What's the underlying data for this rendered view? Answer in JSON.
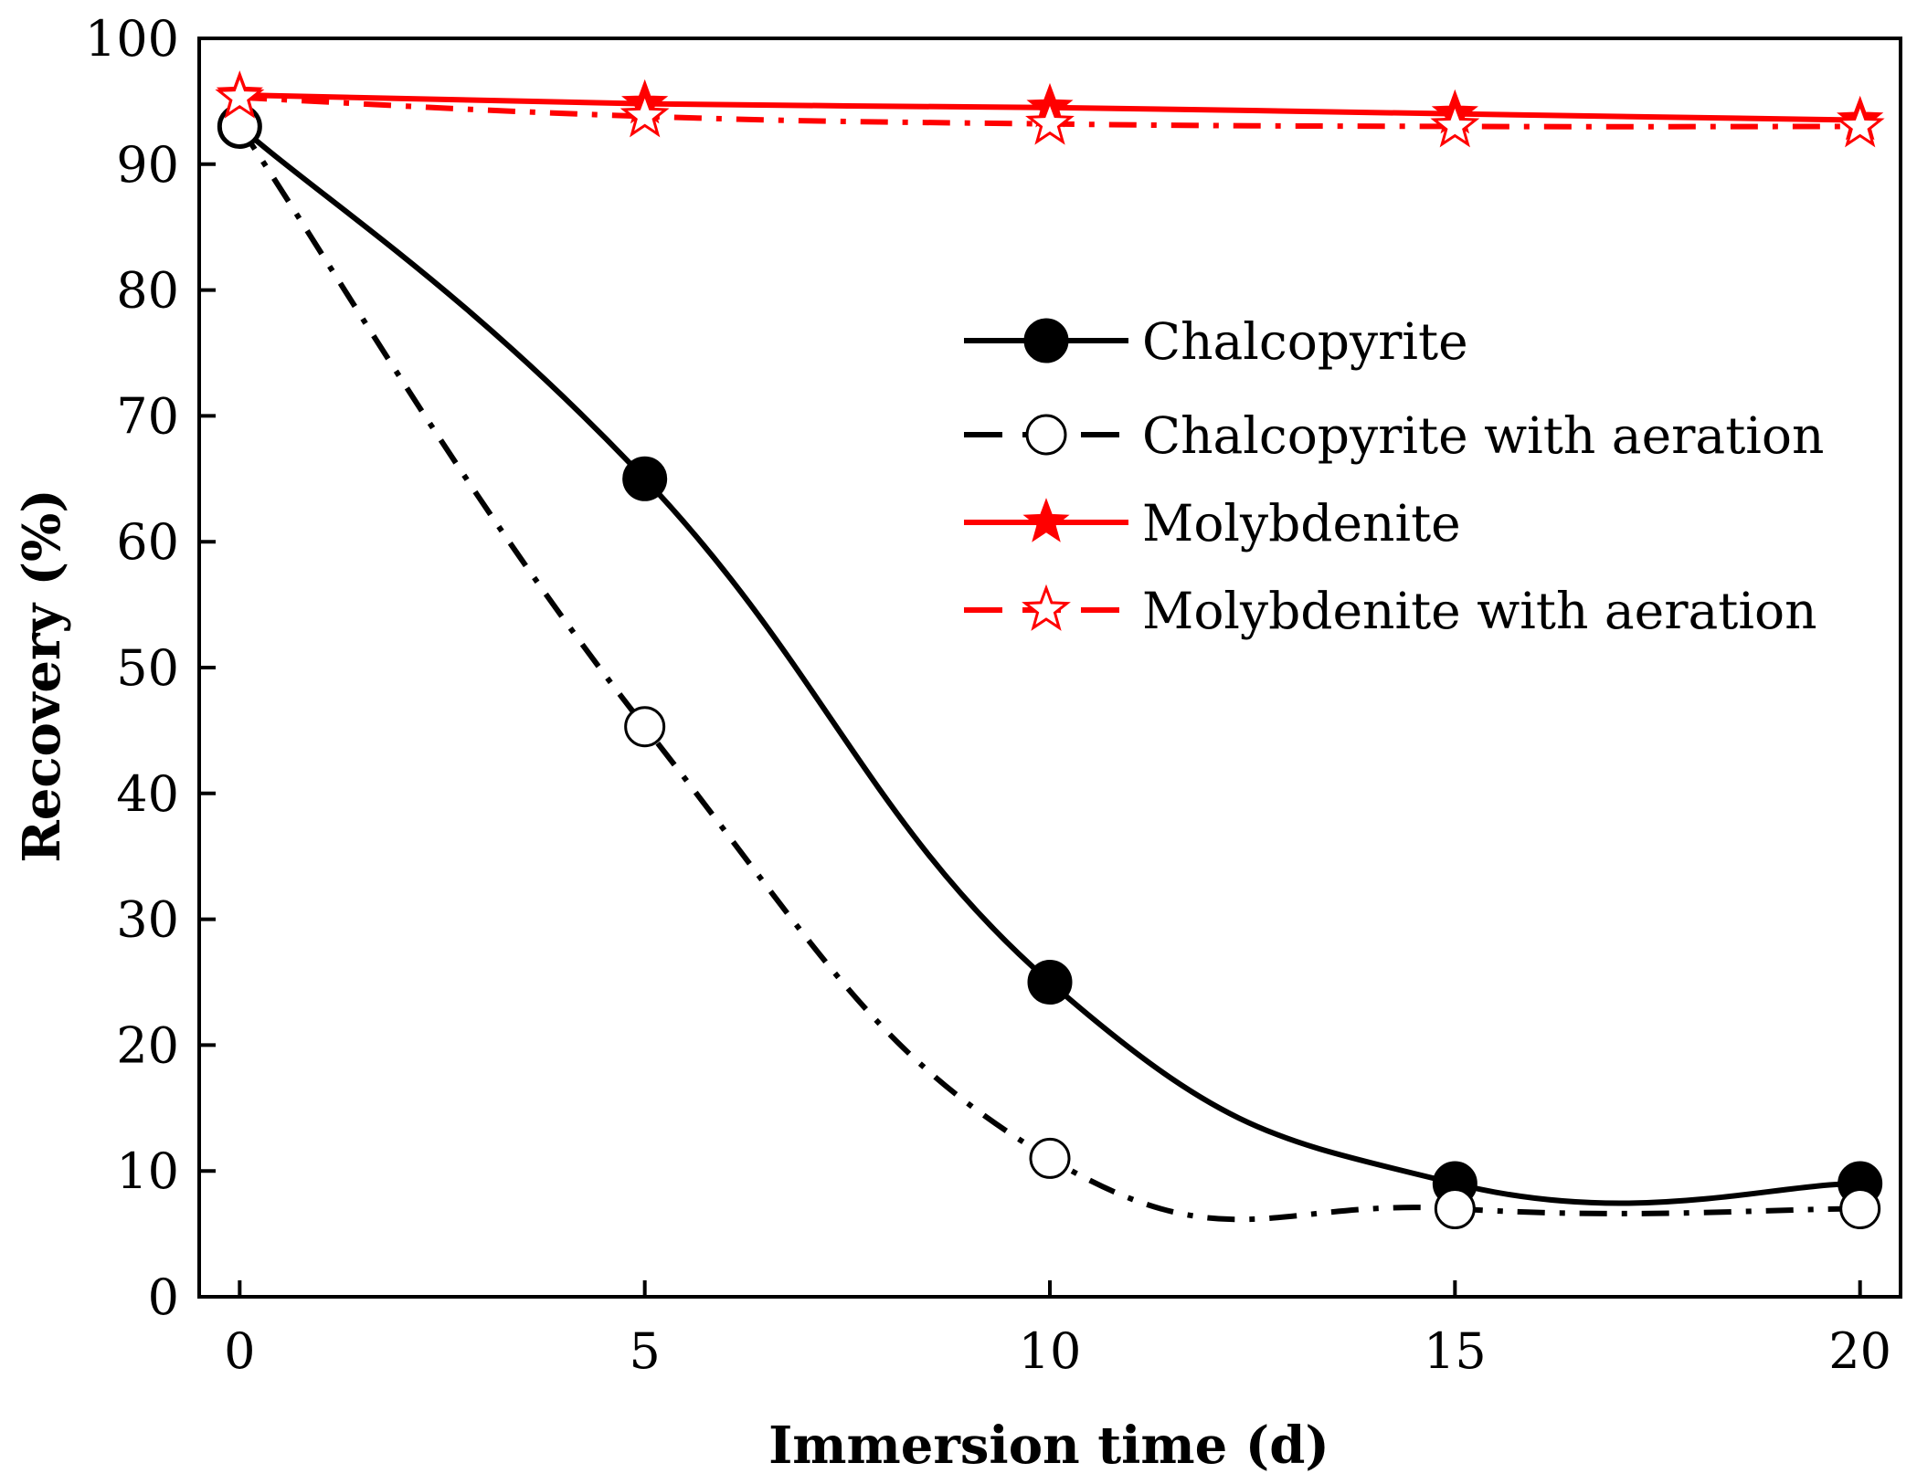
{
  "chart_data": {
    "type": "line",
    "title": "",
    "xlabel": "Immersion time (d)",
    "ylabel": "Recovery (%)",
    "xlim": [
      -0.5,
      20.5
    ],
    "ylim": [
      0,
      100
    ],
    "x_ticks": [
      0,
      5,
      10,
      15,
      20
    ],
    "y_ticks": [
      0,
      10,
      20,
      30,
      40,
      50,
      60,
      70,
      80,
      90,
      100
    ],
    "x_tick_labels": [
      "0",
      "5",
      "10",
      "15",
      "20"
    ],
    "y_tick_labels": [
      "0",
      "10",
      "20",
      "30",
      "40",
      "50",
      "60",
      "70",
      "80",
      "90",
      "100"
    ],
    "grid": false,
    "legend_position": "center-right",
    "x": [
      0,
      5,
      10,
      15,
      20
    ],
    "series": [
      {
        "name": "Chalcopyrite",
        "values": [
          93,
          65,
          25,
          9,
          9
        ],
        "color": "#000000",
        "line": "solid",
        "marker": "filled-circle"
      },
      {
        "name": "Chalcopyrite with aeration",
        "values": [
          93,
          45.3,
          11,
          7,
          7
        ],
        "color": "#000000",
        "line": "dash-dot",
        "marker": "open-circle"
      },
      {
        "name": "Molybdenite",
        "values": [
          95.5,
          94.8,
          94.5,
          94,
          93.5
        ],
        "color": "#ff0000",
        "line": "solid",
        "marker": "filled-star"
      },
      {
        "name": "Molybdenite with aeration",
        "values": [
          95.3,
          93.8,
          93.2,
          93,
          93
        ],
        "color": "#ff0000",
        "line": "dash-dot",
        "marker": "open-star"
      }
    ]
  }
}
